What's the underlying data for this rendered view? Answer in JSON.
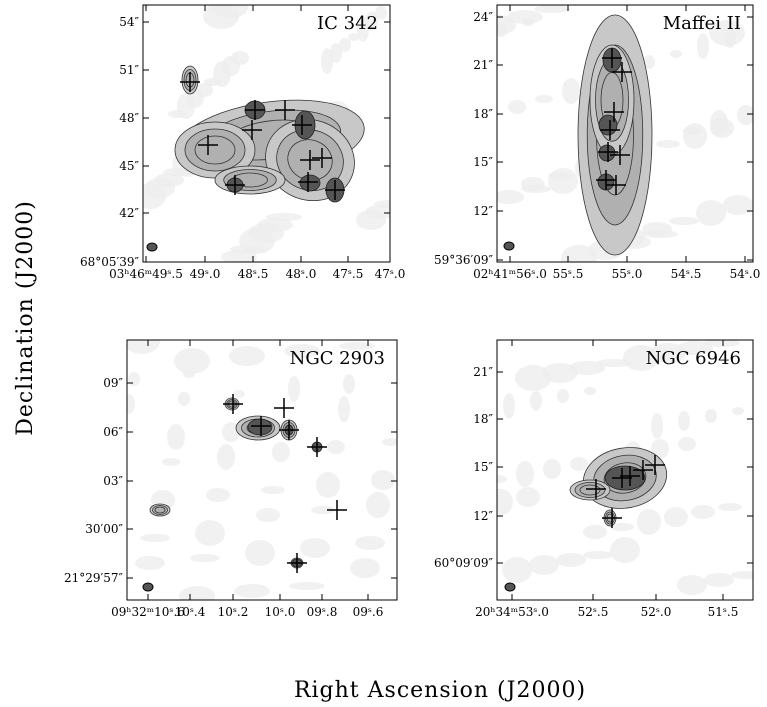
{
  "axes": {
    "y_label": "Declination (J2000)",
    "x_label": "Right Ascension (J2000)"
  },
  "panels": [
    {
      "title": "IC 342",
      "yticks": [
        "54″",
        "51″",
        "48″",
        "45″",
        "42″",
        "68°05′39″"
      ],
      "xticks": [
        "03ʰ46ᵐ49ˢ.5",
        "49ˢ.0",
        "48ˢ.5",
        "48ˢ.0",
        "47ˢ.5",
        "47ˢ.0"
      ]
    },
    {
      "title": "Maffei II",
      "yticks": [
        "24″",
        "21″",
        "18″",
        "15″",
        "12″",
        "59°36′09″"
      ],
      "xticks": [
        "02ʰ41ᵐ56ˢ.0",
        "55ˢ.5",
        "55ˢ.0",
        "54ˢ.5",
        "54ˢ.0"
      ]
    },
    {
      "title": "NGC 2903",
      "yticks": [
        "09″",
        "06″",
        "03″",
        "30′00″",
        "21°29′57″"
      ],
      "xticks": [
        "09ʰ32ᵐ10ˢ.6",
        "10ˢ.4",
        "10ˢ.2",
        "10ˢ.0",
        "09ˢ.8",
        "09ˢ.6"
      ]
    },
    {
      "title": "NGC 6946",
      "yticks": [
        "21″",
        "18″",
        "15″",
        "12″",
        "60°09′09″"
      ],
      "xticks": [
        "20ʰ34ᵐ53ˢ.0",
        "52ˢ.5",
        "52ˢ.0",
        "51ˢ.5"
      ]
    }
  ]
}
